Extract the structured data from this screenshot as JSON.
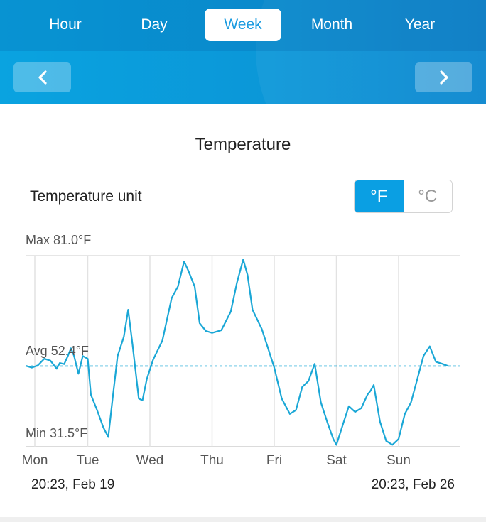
{
  "tabs": [
    {
      "label": "Hour",
      "active": false
    },
    {
      "label": "Day",
      "active": false
    },
    {
      "label": "Week",
      "active": true
    },
    {
      "label": "Month",
      "active": false
    },
    {
      "label": "Year",
      "active": false
    }
  ],
  "nav": {
    "prev_icon": "chevron-left-icon",
    "next_icon": "chevron-right-icon"
  },
  "page": {
    "title": "Temperature"
  },
  "unit": {
    "label": "Temperature unit",
    "fahrenheit": "°F",
    "celsius": "°C",
    "selected": "°F"
  },
  "range": {
    "start": "20:23,  Feb 19",
    "end": "20:23,  Feb 26"
  },
  "colors": {
    "accent": "#0a9fe3",
    "line": "#1aa7d6"
  },
  "chart_data": {
    "type": "line",
    "title": "Temperature",
    "ylim": [
      31.5,
      81.0
    ],
    "ylabel_max": "Max 81.0°F",
    "ylabel_avg": "Avg 52.4°F",
    "ylabel_min": "Min 31.5°F",
    "avg_value": 52.4,
    "xlim": [
      0,
      7
    ],
    "x_ticks": [
      "Mon",
      "Tue",
      "Wed",
      "Thu",
      "Fri",
      "Sat",
      "Sun"
    ],
    "x_tick_positions": [
      0,
      1,
      2,
      3,
      4,
      5,
      6
    ],
    "grid": true,
    "series": [
      {
        "points": [
          [
            0.0,
            52.5
          ],
          [
            0.1,
            52.0
          ],
          [
            0.2,
            52.6
          ],
          [
            0.3,
            54.3
          ],
          [
            0.4,
            53.8
          ],
          [
            0.5,
            51.7
          ],
          [
            0.55,
            53.2
          ],
          [
            0.62,
            52.9
          ],
          [
            0.68,
            55.0
          ],
          [
            0.73,
            57.0
          ],
          [
            0.78,
            55.0
          ],
          [
            0.85,
            50.4
          ],
          [
            0.92,
            55.0
          ],
          [
            1.0,
            54.3
          ],
          [
            1.05,
            45.0
          ],
          [
            1.15,
            41.0
          ],
          [
            1.25,
            36.5
          ],
          [
            1.33,
            34.0
          ],
          [
            1.4,
            44.0
          ],
          [
            1.48,
            55.0
          ],
          [
            1.58,
            60.0
          ],
          [
            1.65,
            67.0
          ],
          [
            1.72,
            58.0
          ],
          [
            1.82,
            44.0
          ],
          [
            1.88,
            43.5
          ],
          [
            1.95,
            49.0
          ],
          [
            2.05,
            54.0
          ],
          [
            2.2,
            59.0
          ],
          [
            2.35,
            70.0
          ],
          [
            2.45,
            73.0
          ],
          [
            2.55,
            79.5
          ],
          [
            2.62,
            77.0
          ],
          [
            2.72,
            73.0
          ],
          [
            2.8,
            63.5
          ],
          [
            2.9,
            61.5
          ],
          [
            3.0,
            61.0
          ],
          [
            3.15,
            61.7
          ],
          [
            3.3,
            66.5
          ],
          [
            3.4,
            74.0
          ],
          [
            3.5,
            80.0
          ],
          [
            3.57,
            76.0
          ],
          [
            3.65,
            67.0
          ],
          [
            3.8,
            62.0
          ],
          [
            3.9,
            57.0
          ],
          [
            4.0,
            52.0
          ],
          [
            4.12,
            44.0
          ],
          [
            4.25,
            40.0
          ],
          [
            4.35,
            41.0
          ],
          [
            4.45,
            47.0
          ],
          [
            4.55,
            48.5
          ],
          [
            4.65,
            53.0
          ],
          [
            4.75,
            43.0
          ],
          [
            4.85,
            38.0
          ],
          [
            4.95,
            33.5
          ],
          [
            5.0,
            32.0
          ],
          [
            5.1,
            37.0
          ],
          [
            5.2,
            42.0
          ],
          [
            5.3,
            40.5
          ],
          [
            5.4,
            41.5
          ],
          [
            5.5,
            45.0
          ],
          [
            5.55,
            46.0
          ],
          [
            5.6,
            47.5
          ],
          [
            5.7,
            38.0
          ],
          [
            5.8,
            33.0
          ],
          [
            5.9,
            32.0
          ],
          [
            6.0,
            33.5
          ],
          [
            6.1,
            40.0
          ],
          [
            6.2,
            43.0
          ],
          [
            6.3,
            49.0
          ],
          [
            6.4,
            55.0
          ],
          [
            6.5,
            57.5
          ],
          [
            6.6,
            53.5
          ],
          [
            6.7,
            53.0
          ],
          [
            6.8,
            52.4
          ]
        ]
      }
    ]
  }
}
